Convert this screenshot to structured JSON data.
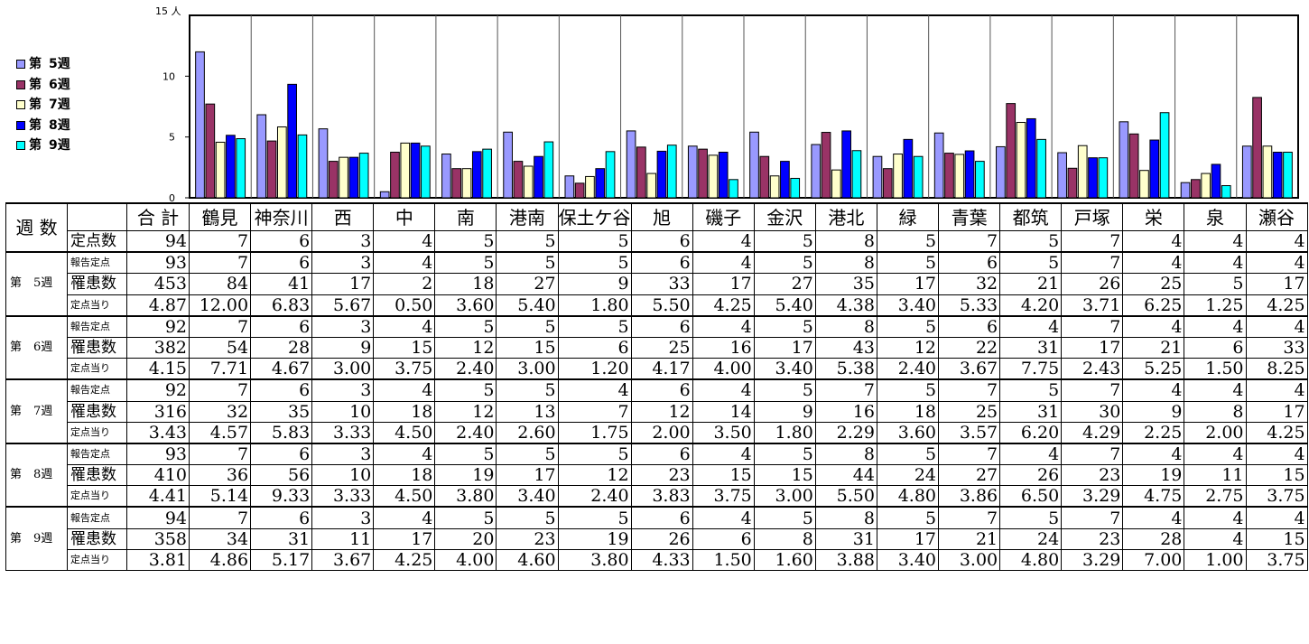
{
  "legend": [
    {
      "prefix": "第",
      "label": "5週",
      "color": "#9999ff"
    },
    {
      "prefix": "第",
      "label": "6週",
      "color": "#993366"
    },
    {
      "prefix": "第",
      "label": "7週",
      "color": "#ffffcc"
    },
    {
      "prefix": "第",
      "label": "8週",
      "color": "#0000ff"
    },
    {
      "prefix": "第",
      "label": "9週",
      "color": "#00ffff"
    }
  ],
  "chart_data": {
    "type": "bar",
    "ymax_label": "15 人",
    "ylim": [
      0,
      15
    ],
    "yticks": [
      "0",
      "5",
      "10"
    ],
    "ytick_values": [
      0,
      5,
      10
    ],
    "categories": [
      "鶴見",
      "神奈川",
      "西",
      "中",
      "南",
      "港南",
      "保土ケ谷",
      "旭",
      "磯子",
      "金沢",
      "港北",
      "緑",
      "青葉",
      "都筑",
      "戸塚",
      "栄",
      "泉",
      "瀬谷"
    ],
    "series": [
      {
        "name": "第　5週",
        "color": "#9999ff",
        "values": [
          12.0,
          6.83,
          5.67,
          0.5,
          3.6,
          5.4,
          1.8,
          5.5,
          4.25,
          5.4,
          4.38,
          3.4,
          5.33,
          4.2,
          3.71,
          6.25,
          1.25,
          4.25
        ]
      },
      {
        "name": "第　6週",
        "color": "#993366",
        "values": [
          7.71,
          4.67,
          3.0,
          3.75,
          2.4,
          3.0,
          1.2,
          4.17,
          4.0,
          3.4,
          5.38,
          2.4,
          3.67,
          7.75,
          2.43,
          5.25,
          1.5,
          8.25
        ]
      },
      {
        "name": "第　7週",
        "color": "#ffffcc",
        "values": [
          4.57,
          5.83,
          3.33,
          4.5,
          2.4,
          2.6,
          1.75,
          2.0,
          3.5,
          1.8,
          2.29,
          3.6,
          3.57,
          6.2,
          4.29,
          2.25,
          2.0,
          4.25
        ]
      },
      {
        "name": "第　8週",
        "color": "#0000ff",
        "values": [
          5.14,
          9.33,
          3.33,
          4.5,
          3.8,
          3.4,
          2.4,
          3.83,
          3.75,
          3.0,
          5.5,
          4.8,
          3.86,
          6.5,
          3.29,
          4.75,
          2.75,
          3.75
        ]
      },
      {
        "name": "第　9週",
        "color": "#00ffff",
        "values": [
          4.86,
          5.17,
          3.67,
          4.25,
          4.0,
          4.6,
          3.8,
          4.33,
          1.5,
          1.6,
          3.88,
          3.4,
          3.0,
          4.8,
          3.29,
          7.0,
          1.0,
          3.75
        ]
      }
    ]
  },
  "table": {
    "header_label": "週 数",
    "total_label": "合 計",
    "districts": [
      "鶴見",
      "神奈川",
      "西",
      "中",
      "南",
      "港南",
      "保土ケ谷",
      "旭",
      "磯子",
      "金沢",
      "港北",
      "緑",
      "青葉",
      "都筑",
      "戸塚",
      "栄",
      "泉",
      "瀬谷"
    ],
    "sentinel_row": {
      "label": "定点数",
      "total": "94",
      "values": [
        "7",
        "6",
        "3",
        "4",
        "5",
        "5",
        "5",
        "6",
        "4",
        "5",
        "8",
        "5",
        "7",
        "5",
        "7",
        "4",
        "4",
        "4"
      ]
    },
    "groups": [
      {
        "label": "第　5週",
        "rows": [
          {
            "label": "報告定点",
            "total": "93",
            "values": [
              "7",
              "6",
              "3",
              "4",
              "5",
              "5",
              "5",
              "6",
              "4",
              "5",
              "8",
              "5",
              "6",
              "5",
              "7",
              "4",
              "4",
              "4"
            ]
          },
          {
            "label": "罹患数",
            "total": "453",
            "values": [
              "84",
              "41",
              "17",
              "2",
              "18",
              "27",
              "9",
              "33",
              "17",
              "27",
              "35",
              "17",
              "32",
              "21",
              "26",
              "25",
              "5",
              "17"
            ]
          },
          {
            "label": "定点当り",
            "total": "4.87",
            "values": [
              "12.00",
              "6.83",
              "5.67",
              "0.50",
              "3.60",
              "5.40",
              "1.80",
              "5.50",
              "4.25",
              "5.40",
              "4.38",
              "3.40",
              "5.33",
              "4.20",
              "3.71",
              "6.25",
              "1.25",
              "4.25"
            ]
          }
        ]
      },
      {
        "label": "第　6週",
        "rows": [
          {
            "label": "報告定点",
            "total": "92",
            "values": [
              "7",
              "6",
              "3",
              "4",
              "5",
              "5",
              "5",
              "6",
              "4",
              "5",
              "8",
              "5",
              "6",
              "4",
              "7",
              "4",
              "4",
              "4"
            ]
          },
          {
            "label": "罹患数",
            "total": "382",
            "values": [
              "54",
              "28",
              "9",
              "15",
              "12",
              "15",
              "6",
              "25",
              "16",
              "17",
              "43",
              "12",
              "22",
              "31",
              "17",
              "21",
              "6",
              "33"
            ]
          },
          {
            "label": "定点当り",
            "total": "4.15",
            "values": [
              "7.71",
              "4.67",
              "3.00",
              "3.75",
              "2.40",
              "3.00",
              "1.20",
              "4.17",
              "4.00",
              "3.40",
              "5.38",
              "2.40",
              "3.67",
              "7.75",
              "2.43",
              "5.25",
              "1.50",
              "8.25"
            ]
          }
        ]
      },
      {
        "label": "第　7週",
        "rows": [
          {
            "label": "報告定点",
            "total": "92",
            "values": [
              "7",
              "6",
              "3",
              "4",
              "5",
              "5",
              "4",
              "6",
              "4",
              "5",
              "7",
              "5",
              "7",
              "5",
              "7",
              "4",
              "4",
              "4"
            ]
          },
          {
            "label": "罹患数",
            "total": "316",
            "values": [
              "32",
              "35",
              "10",
              "18",
              "12",
              "13",
              "7",
              "12",
              "14",
              "9",
              "16",
              "18",
              "25",
              "31",
              "30",
              "9",
              "8",
              "17"
            ]
          },
          {
            "label": "定点当り",
            "total": "3.43",
            "values": [
              "4.57",
              "5.83",
              "3.33",
              "4.50",
              "2.40",
              "2.60",
              "1.75",
              "2.00",
              "3.50",
              "1.80",
              "2.29",
              "3.60",
              "3.57",
              "6.20",
              "4.29",
              "2.25",
              "2.00",
              "4.25"
            ]
          }
        ]
      },
      {
        "label": "第　8週",
        "rows": [
          {
            "label": "報告定点",
            "total": "93",
            "values": [
              "7",
              "6",
              "3",
              "4",
              "5",
              "5",
              "5",
              "6",
              "4",
              "5",
              "8",
              "5",
              "7",
              "4",
              "7",
              "4",
              "4",
              "4"
            ]
          },
          {
            "label": "罹患数",
            "total": "410",
            "values": [
              "36",
              "56",
              "10",
              "18",
              "19",
              "17",
              "12",
              "23",
              "15",
              "15",
              "44",
              "24",
              "27",
              "26",
              "23",
              "19",
              "11",
              "15"
            ]
          },
          {
            "label": "定点当り",
            "total": "4.41",
            "values": [
              "5.14",
              "9.33",
              "3.33",
              "4.50",
              "3.80",
              "3.40",
              "2.40",
              "3.83",
              "3.75",
              "3.00",
              "5.50",
              "4.80",
              "3.86",
              "6.50",
              "3.29",
              "4.75",
              "2.75",
              "3.75"
            ]
          }
        ]
      },
      {
        "label": "第　9週",
        "rows": [
          {
            "label": "報告定点",
            "total": "94",
            "values": [
              "7",
              "6",
              "3",
              "4",
              "5",
              "5",
              "5",
              "6",
              "4",
              "5",
              "8",
              "5",
              "7",
              "5",
              "7",
              "4",
              "4",
              "4"
            ]
          },
          {
            "label": "罹患数",
            "total": "358",
            "values": [
              "34",
              "31",
              "11",
              "17",
              "20",
              "23",
              "19",
              "26",
              "6",
              "8",
              "31",
              "17",
              "21",
              "24",
              "23",
              "28",
              "4",
              "15"
            ]
          },
          {
            "label": "定点当り",
            "total": "3.81",
            "values": [
              "4.86",
              "5.17",
              "3.67",
              "4.25",
              "4.00",
              "4.60",
              "3.80",
              "4.33",
              "1.50",
              "1.60",
              "3.88",
              "3.40",
              "3.00",
              "4.80",
              "3.29",
              "7.00",
              "1.00",
              "3.75"
            ]
          }
        ]
      }
    ]
  }
}
